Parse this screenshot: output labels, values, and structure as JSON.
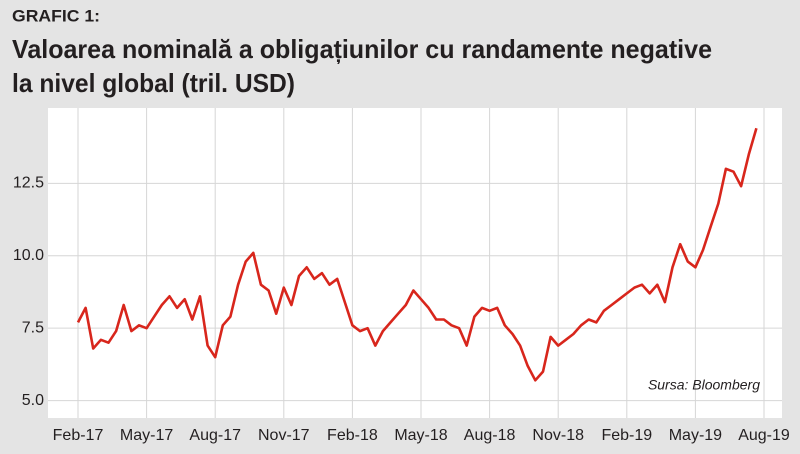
{
  "chart_data": {
    "type": "line",
    "label": "GRAFIC 1:",
    "title": [
      "Valoarea nominală a obligațiunilor cu randamente negative",
      "la nivel global (tril. USD)"
    ],
    "annotation": "Sursa: Bloomberg",
    "categories": [
      "Feb-17",
      null,
      null,
      null,
      null,
      null,
      null,
      null,
      null,
      "May-17",
      null,
      null,
      null,
      null,
      null,
      null,
      null,
      null,
      "Aug-17",
      null,
      null,
      null,
      null,
      null,
      null,
      null,
      null,
      "Nov-17",
      null,
      null,
      null,
      null,
      null,
      null,
      null,
      null,
      "Feb-18",
      null,
      null,
      null,
      null,
      null,
      null,
      null,
      null,
      "May-18",
      null,
      null,
      null,
      null,
      null,
      null,
      null,
      null,
      "Aug-18",
      null,
      null,
      null,
      null,
      null,
      null,
      null,
      null,
      "Nov-18",
      null,
      null,
      null,
      null,
      null,
      null,
      null,
      null,
      "Feb-19",
      null,
      null,
      null,
      null,
      null,
      null,
      null,
      null,
      "May-19",
      null,
      null,
      null,
      null,
      null,
      null,
      null,
      null,
      "Aug-19"
    ],
    "series": [
      {
        "color": "#d8261c",
        "values": [
          7.7,
          8.2,
          6.8,
          7.1,
          7.0,
          7.4,
          8.3,
          7.4,
          7.6,
          7.5,
          7.9,
          8.3,
          8.6,
          8.2,
          8.5,
          7.8,
          8.6,
          6.9,
          6.5,
          7.6,
          7.9,
          9.0,
          9.8,
          10.1,
          9.0,
          8.8,
          8.0,
          8.9,
          8.3,
          9.3,
          9.6,
          9.2,
          9.4,
          9.0,
          9.2,
          8.4,
          7.6,
          7.4,
          7.5,
          6.9,
          7.4,
          7.7,
          8.0,
          8.3,
          8.8,
          8.5,
          8.2,
          7.8,
          7.8,
          7.6,
          7.5,
          6.9,
          7.9,
          8.2,
          8.1,
          8.2,
          7.6,
          7.3,
          6.9,
          6.2,
          5.7,
          6.0,
          7.2,
          6.9,
          7.1,
          7.3,
          7.6,
          7.8,
          7.7,
          8.1,
          8.3,
          8.5,
          8.7,
          8.9,
          9.0,
          8.7,
          9.0,
          8.4,
          9.6,
          10.4,
          9.8,
          9.6,
          10.2,
          11.0,
          11.8,
          13.0,
          12.9,
          12.4,
          13.5,
          14.4,
          null
        ]
      }
    ],
    "ylim": [
      4.4,
      15.1
    ],
    "yticks": [
      {
        "value": 5,
        "label": "5.0"
      },
      7.5,
      {
        "value": 10,
        "label": "10.0"
      },
      12.5
    ],
    "grid": true
  }
}
